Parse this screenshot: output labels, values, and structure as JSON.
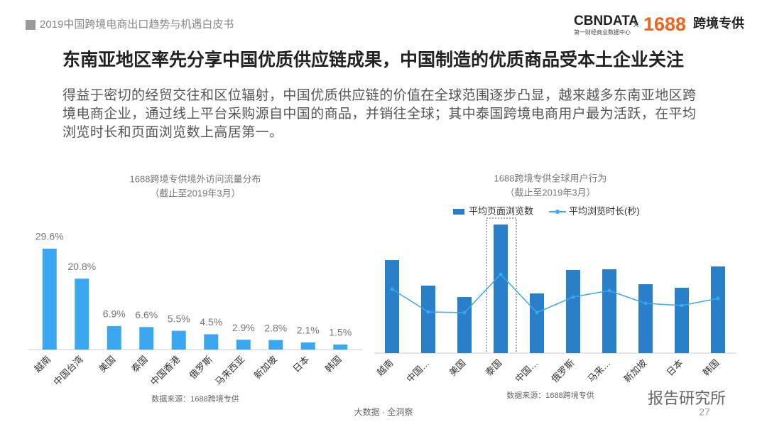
{
  "header": {
    "report": "2019中国跨境电商出口趋势与机遇白皮书",
    "logo_left": "CBNDATA",
    "logo_left_sub": "第一财经商业数据中心",
    "logo_x": "×",
    "logo_right": "1688",
    "logo_right_tag": "跨境专供"
  },
  "title": "东南亚地区率先分享中国优质供应链成果，中国制造的优质商品受本土企业关注",
  "paragraph": "得益于密切的经贸交往和区位辐射，中国优质供应链的价值在全球范围逐步凸显，越来越多东南亚地区跨境电商企业，通过线上平台采购源自中国的商品，并销往全球；其中泰国跨境电商用户最为活跃，在平均浏览时长和页面浏览数上高居第一。",
  "chart_data": [
    {
      "type": "bar",
      "title": "1688跨境专供境外访问流量分布",
      "subtitle": "（截止至2019年3月）",
      "categories": [
        "越南",
        "中国台湾",
        "美国",
        "泰国",
        "中国香港",
        "俄罗斯",
        "马来西亚",
        "新加坡",
        "日本",
        "韩国"
      ],
      "values": [
        29.6,
        20.8,
        6.9,
        6.6,
        5.5,
        4.5,
        2.9,
        2.8,
        2.1,
        1.5
      ],
      "value_labels": [
        "29.6%",
        "20.8%",
        "6.9%",
        "6.6%",
        "5.5%",
        "4.5%",
        "2.9%",
        "2.8%",
        "2.1%",
        "1.5%"
      ],
      "color": "#3aa7f0",
      "source": "数据来源：1688跨境专供"
    },
    {
      "type": "bar-line",
      "title": "1688跨境专供全球用户行为",
      "subtitle": "（截止至2019年3月）",
      "categories": [
        "越南",
        "中国…",
        "美国",
        "泰国",
        "中国…",
        "俄罗斯",
        "马来…",
        "新加坡",
        "日本",
        "韩国"
      ],
      "series": [
        {
          "name": "平均页面浏览数",
          "color": "#2a7fc9",
          "values": [
            131,
            95,
            79,
            181,
            84,
            117,
            118,
            97,
            92,
            122
          ]
        },
        {
          "name": "平均浏览时长(秒)",
          "color": "#3aa7f0",
          "values": [
            90,
            58,
            57,
            111,
            57,
            79,
            88,
            70,
            67,
            77
          ]
        }
      ],
      "source": "数据来源：1688跨境专供"
    }
  ],
  "footer": {
    "tagline": "大数据 · 全洞察",
    "page": "27",
    "watermark": "报告研究所"
  }
}
